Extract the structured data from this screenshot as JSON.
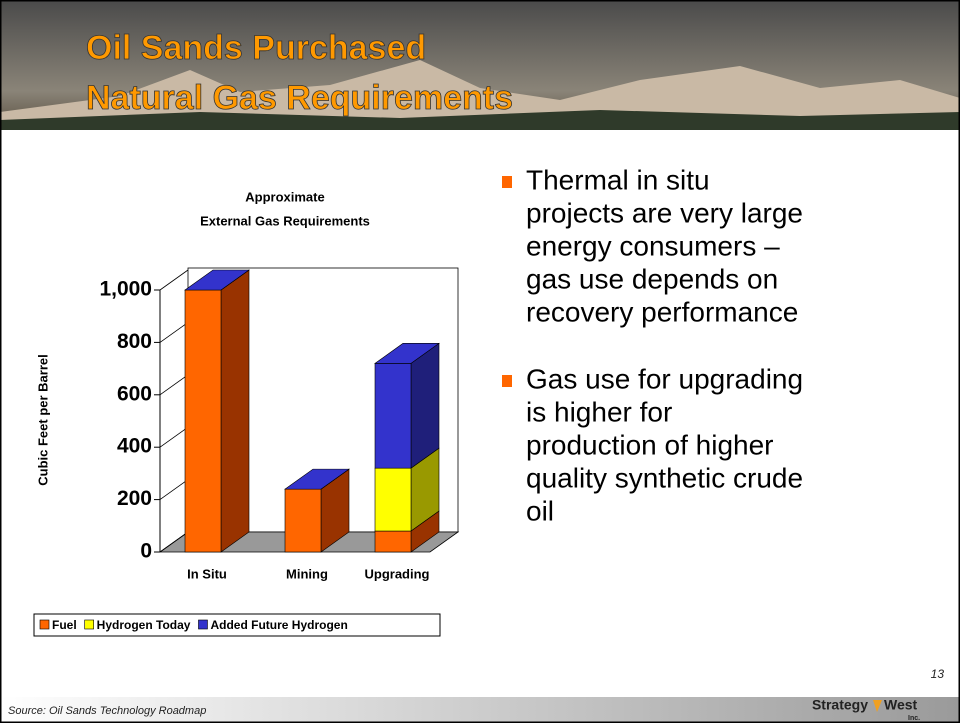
{
  "slide": {
    "title": [
      "Oil Sands Purchased",
      "Natural Gas Requirements"
    ],
    "bullets": [
      [
        "Thermal in situ",
        "projects are very large",
        "energy consumers –",
        "gas use depends on",
        "recovery performance"
      ],
      [
        "Gas use for upgrading",
        "is higher for",
        "production of higher",
        "quality synthetic crude",
        "oil"
      ]
    ],
    "page_number": "13",
    "source": "Source: Oil Sands Technology Roadmap",
    "logo": "Strategy",
    "logo_2": "West",
    "logo_sub": "Inc."
  },
  "chart_data": {
    "type": "bar3d-stacked",
    "title": [
      "Approximate",
      "External Gas Requirements"
    ],
    "y_label": "Cubic Feet per Barrel",
    "categories": [
      "In Situ",
      "Mining",
      "Upgrading"
    ],
    "series": [
      {
        "name": "Fuel",
        "color": "#ff6600",
        "side": "#993300",
        "values": [
          1000,
          240,
          80
        ]
      },
      {
        "name": "Hydrogen Today",
        "color": "#ffff00",
        "side": "#999900",
        "values": [
          0,
          0,
          240
        ]
      },
      {
        "name": "Added Future Hydrogen",
        "color": "#3333cc",
        "side": "#1f1f7a",
        "values": [
          0,
          0,
          400
        ]
      }
    ],
    "ylim": [
      0,
      1000
    ],
    "yticks": [
      0,
      200,
      400,
      600,
      800,
      {
        "value": 1000,
        "label": "1,000"
      }
    ]
  }
}
